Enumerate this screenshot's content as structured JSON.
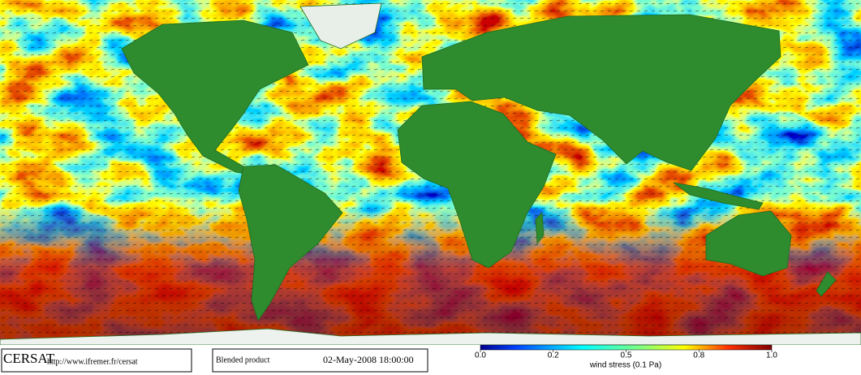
{
  "header": {
    "logo": "CERSAT",
    "url": "http://www.ifremer.fr/cersat"
  },
  "product": {
    "name": "Blended product",
    "timestamp": "02-May-2008 18:00:00"
  },
  "colorbar": {
    "ticks": [
      "0.0",
      "0.2",
      "0.5",
      "0.8",
      "1.0"
    ],
    "label": "wind stress (0.1 Pa)"
  }
}
